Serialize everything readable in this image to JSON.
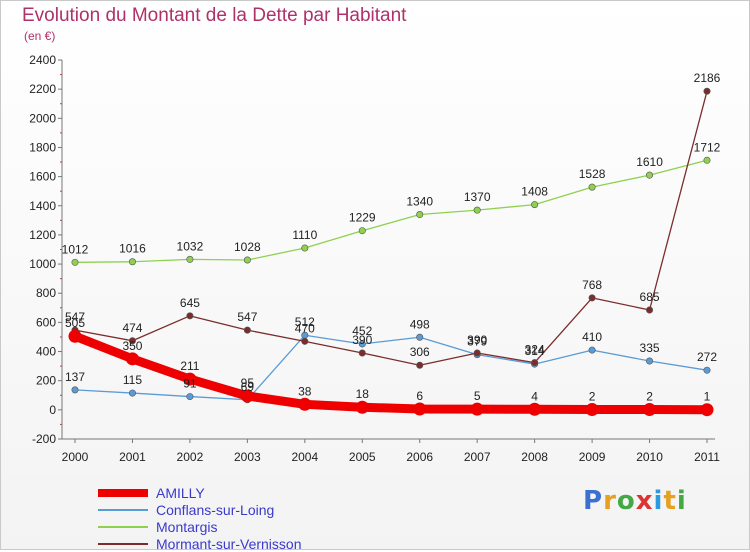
{
  "title": "Evolution du Montant de la Dette par Habitant",
  "subtitle": "(en €)",
  "logo": {
    "text": "Proxiti",
    "letter_colors": [
      "#3b6fd0",
      "#e8a020",
      "#44a844",
      "#d33",
      "#2a9be0",
      "#e8a020",
      "#44a844"
    ]
  },
  "chart_data": {
    "type": "line",
    "title": "Evolution du Montant de la Dette par Habitant",
    "subtitle": "(en €)",
    "x": [
      "2000",
      "2001",
      "2002",
      "2003",
      "2004",
      "2005",
      "2006",
      "2007",
      "2008",
      "2009",
      "2010",
      "2011"
    ],
    "ylim": [
      -200,
      2400
    ],
    "yticks": [
      -200,
      0,
      200,
      400,
      600,
      800,
      1000,
      1200,
      1400,
      1600,
      1800,
      2000,
      2200,
      2400
    ],
    "grid": false,
    "legend_position": "bottom-left",
    "series": [
      {
        "name": "AMILLY",
        "color": "#ee0000",
        "values": [
          505,
          350,
          211,
          95,
          38,
          18,
          6,
          5,
          4,
          2,
          2,
          1
        ],
        "labels": [
          "505",
          "350",
          "211",
          "95",
          "38",
          "18",
          "6",
          "5",
          "4",
          "2",
          "2",
          "1"
        ],
        "bold": true
      },
      {
        "name": "Conflans-sur-Loing",
        "color": "#5b9bd5",
        "values": [
          137,
          115,
          91,
          69,
          512,
          452,
          498,
          379,
          314,
          410,
          335,
          272
        ],
        "labels": [
          "137",
          "115",
          "91",
          "69",
          "512",
          "452",
          "498",
          "379",
          "314",
          "410",
          "335",
          "272"
        ]
      },
      {
        "name": "Montargis",
        "color": "#8fd14f",
        "values": [
          1012,
          1016,
          1032,
          1028,
          1110,
          1229,
          1340,
          1370,
          1408,
          1528,
          1610,
          1712
        ],
        "labels": [
          "1012",
          "1016",
          "1032",
          "1028",
          "1110",
          "1229",
          "1340",
          "1370",
          "1408",
          "1528",
          "1610",
          "1712"
        ]
      },
      {
        "name": "Mormant-sur-Vernisson",
        "color": "#7b2d2d",
        "values": [
          547,
          474,
          645,
          547,
          470,
          390,
          306,
          390,
          324,
          768,
          685,
          2186
        ],
        "labels": [
          "547",
          "474",
          "645",
          "547",
          "470",
          "390",
          "306",
          "390",
          "324",
          "768",
          "685",
          "2186"
        ]
      }
    ]
  }
}
